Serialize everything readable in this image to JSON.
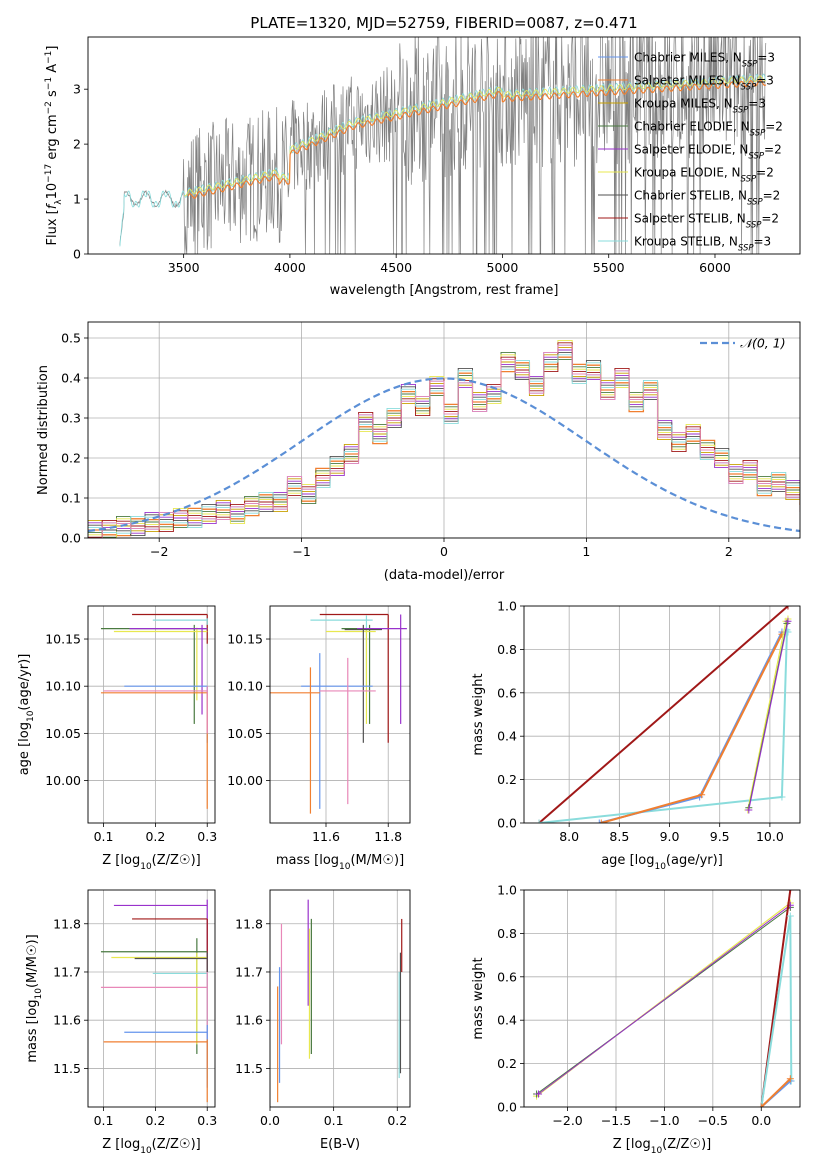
{
  "figure_title": "PLATE=1320, MJD=52759, FIBERID=0087, z=0.471",
  "colors": {
    "chabrier_miles": "#6495ED",
    "salpeter_miles": "#F07F30",
    "kroupa_miles": "#C8A000",
    "chabrier_elodie": "#4A7A40",
    "salpeter_elodie": "#9932CC",
    "kroupa_elodie": "#E8E850",
    "chabrier_stelib": "#505050",
    "salpeter_stelib": "#A01818",
    "kroupa_stelib": "#8ADCDC",
    "pink": "#E888B8",
    "data_gray": "#808080",
    "normal_curve": "#5B8FD6"
  },
  "chart_data": [
    {
      "id": "spectrum",
      "type": "line",
      "title": "PLATE=1320, MJD=52759, FIBERID=0087, z=0.471",
      "xlabel": "wavelength [Angstrom, rest frame]",
      "ylabel_parts": [
        "Flux [",
        "f",
        "λ",
        "10",
        "−17",
        " erg cm",
        "−2",
        " s",
        "−1",
        " A",
        "−1",
        "]"
      ],
      "xlim": [
        3050,
        6400
      ],
      "ylim": [
        0,
        3.95
      ],
      "xticks": [
        "3500",
        "4000",
        "4500",
        "5000",
        "5500",
        "6000"
      ],
      "xtick_values": [
        3500,
        4000,
        4500,
        5000,
        5500,
        6000
      ],
      "yticks": [
        "0",
        "1",
        "2",
        "3"
      ],
      "ytick_values": [
        0,
        1,
        2,
        3
      ],
      "grid": false,
      "legend_position": "top-right",
      "legend": [
        {
          "label": "Chabrier MILES, N",
          "sub": "SSP",
          "suffix": "=3",
          "color_key": "chabrier_miles"
        },
        {
          "label": "Salpeter MILES, N",
          "sub": "SSP",
          "suffix": "=3",
          "color_key": "salpeter_miles"
        },
        {
          "label": "Kroupa MILES, N",
          "sub": "SSP",
          "suffix": "=3",
          "color_key": "kroupa_miles"
        },
        {
          "label": "Chabrier ELODIE, N",
          "sub": "SSP",
          "suffix": "=2",
          "color_key": "chabrier_elodie"
        },
        {
          "label": "Salpeter ELODIE, N",
          "sub": "SSP",
          "suffix": "=2",
          "color_key": "salpeter_elodie"
        },
        {
          "label": "Kroupa ELODIE, N",
          "sub": "SSP",
          "suffix": "=2",
          "color_key": "kroupa_elodie"
        },
        {
          "label": "Chabrier STELIB, N",
          "sub": "SSP",
          "suffix": "=2",
          "color_key": "chabrier_stelib"
        },
        {
          "label": "Salpeter STELIB, N",
          "sub": "SSP",
          "suffix": "=2",
          "color_key": "salpeter_stelib"
        },
        {
          "label": "Kroupa STELIB, N",
          "sub": "SSP",
          "suffix": "=3",
          "color_key": "kroupa_stelib"
        }
      ],
      "spectrum_note": "",
      "data_range": [
        3200,
        6240
      ]
    },
    {
      "id": "residuals",
      "type": "histogram",
      "xlabel": "(data-model)/error",
      "ylabel": "Normed distribution",
      "xlim": [
        -2.5,
        2.5
      ],
      "ylim": [
        0,
        0.54
      ],
      "xticks": [
        "−2",
        "−1",
        "0",
        "1",
        "2"
      ],
      "xtick_values": [
        -2,
        -1,
        0,
        1,
        2
      ],
      "yticks": [
        "0.0",
        "0.1",
        "0.2",
        "0.3",
        "0.4",
        "0.5"
      ],
      "ytick_values": [
        0,
        0.1,
        0.2,
        0.3,
        0.4,
        0.5
      ],
      "grid": true,
      "legend_position": "top-right",
      "legend_label": "𝒩(0, 1)",
      "bin_start": -2.5,
      "bin_width": 0.1,
      "hist_values": [
        0.02,
        0.02,
        0.03,
        0.03,
        0.04,
        0.04,
        0.05,
        0.05,
        0.06,
        0.07,
        0.06,
        0.08,
        0.09,
        0.09,
        0.13,
        0.11,
        0.15,
        0.18,
        0.21,
        0.29,
        0.26,
        0.3,
        0.36,
        0.33,
        0.38,
        0.31,
        0.4,
        0.34,
        0.36,
        0.44,
        0.42,
        0.38,
        0.44,
        0.47,
        0.41,
        0.42,
        0.37,
        0.4,
        0.34,
        0.37,
        0.27,
        0.24,
        0.26,
        0.22,
        0.2,
        0.16,
        0.17,
        0.13,
        0.14,
        0.12,
        0.09
      ]
    },
    {
      "id": "age_vs_Z",
      "type": "errorbar",
      "xlabel": "Z [log10(Z/Z☉)]",
      "ylabel": "age  [log10(age/yr)]",
      "xlim": [
        0.07,
        0.315
      ],
      "ylim": [
        9.955,
        10.185
      ],
      "xticks": [
        "0.1",
        "0.2",
        "0.3"
      ],
      "xtick_values": [
        0.1,
        0.2,
        0.3
      ],
      "yticks": [
        "10.00",
        "10.05",
        "10.10",
        "10.15"
      ],
      "ytick_values": [
        10.0,
        10.05,
        10.1,
        10.15
      ],
      "grid": true,
      "points": [
        {
          "x": 0.3,
          "y": 10.176,
          "x0": 0.155,
          "x1": 0.3,
          "y0": 10.145,
          "y1": 10.176,
          "color_key": "salpeter_stelib"
        },
        {
          "x": 0.3,
          "y": 10.17,
          "x0": 0.195,
          "x1": 0.3,
          "y0": 10.165,
          "y1": 10.172,
          "color_key": "kroupa_stelib"
        },
        {
          "x": 0.275,
          "y": 10.161,
          "x0": 0.095,
          "x1": 0.3,
          "y0": 10.06,
          "y1": 10.165,
          "color_key": "chabrier_elodie"
        },
        {
          "x": 0.28,
          "y": 10.158,
          "x0": 0.12,
          "x1": 0.3,
          "y0": 10.085,
          "y1": 10.162,
          "color_key": "kroupa_elodie"
        },
        {
          "x": 0.29,
          "y": 10.161,
          "x0": 0.15,
          "x1": 0.3,
          "y0": 10.07,
          "y1": 10.165,
          "color_key": "salpeter_elodie"
        },
        {
          "x": 0.3,
          "y": 10.1,
          "x0": 0.14,
          "x1": 0.3,
          "y0": 10.04,
          "y1": 10.1,
          "color_key": "chabrier_miles"
        },
        {
          "x": 0.3,
          "y": 10.093,
          "x0": 0.095,
          "x1": 0.3,
          "y0": 9.97,
          "y1": 10.094,
          "color_key": "salpeter_miles"
        },
        {
          "x": 0.3,
          "y": 10.095,
          "x0": 0.1,
          "x1": 0.3,
          "y0": 10.05,
          "y1": 10.1,
          "color_key": "pink"
        }
      ]
    },
    {
      "id": "age_vs_mass",
      "type": "errorbar",
      "xlabel": "mass [log10(M/M☉)]",
      "ylabel": "",
      "xlim": [
        11.42,
        11.87
      ],
      "ylim": [
        9.955,
        10.185
      ],
      "xticks": [
        "11.6",
        "11.8"
      ],
      "xtick_values": [
        11.6,
        11.8
      ],
      "yticks": [
        "10.00",
        "10.05",
        "10.10",
        "10.15"
      ],
      "ytick_values": [
        10.0,
        10.05,
        10.1,
        10.15
      ],
      "grid": true,
      "points": [
        {
          "x": 11.8,
          "y": 10.176,
          "x0": 11.58,
          "x1": 11.8,
          "y0": 10.04,
          "y1": 10.176,
          "color_key": "salpeter_stelib"
        },
        {
          "x": 11.73,
          "y": 10.17,
          "x0": 11.55,
          "x1": 11.75,
          "y0": 10.1,
          "y1": 10.175,
          "color_key": "kroupa_stelib"
        },
        {
          "x": 11.74,
          "y": 10.161,
          "x0": 11.65,
          "x1": 11.78,
          "y0": 10.06,
          "y1": 10.165,
          "color_key": "chabrier_elodie"
        },
        {
          "x": 11.73,
          "y": 10.158,
          "x0": 11.6,
          "x1": 11.76,
          "y0": 10.06,
          "y1": 10.16,
          "color_key": "kroupa_elodie"
        },
        {
          "x": 11.84,
          "y": 10.161,
          "x0": 11.7,
          "x1": 11.86,
          "y0": 10.06,
          "y1": 10.176,
          "color_key": "salpeter_elodie"
        },
        {
          "x": 11.72,
          "y": 10.16,
          "x0": 11.66,
          "x1": 11.78,
          "y0": 10.04,
          "y1": 10.165,
          "color_key": "chabrier_stelib"
        },
        {
          "x": 11.58,
          "y": 10.1,
          "x0": 11.52,
          "x1": 11.75,
          "y0": 9.97,
          "y1": 10.135,
          "color_key": "chabrier_miles"
        },
        {
          "x": 11.55,
          "y": 10.093,
          "x0": 11.42,
          "x1": 11.58,
          "y0": 9.965,
          "y1": 10.12,
          "color_key": "salpeter_miles"
        },
        {
          "x": 11.67,
          "y": 10.095,
          "x0": 11.58,
          "x1": 11.76,
          "y0": 9.975,
          "y1": 10.13,
          "color_key": "pink"
        }
      ]
    },
    {
      "id": "weight_vs_age",
      "type": "line",
      "xlabel": "age  [log10(age/yr)]",
      "ylabel": "mass weight",
      "xlim": [
        7.55,
        10.3
      ],
      "ylim": [
        0,
        1.0
      ],
      "xticks": [
        "8.0",
        "8.5",
        "9.0",
        "9.5",
        "10.0"
      ],
      "xtick_values": [
        8.0,
        8.5,
        9.0,
        9.5,
        10.0
      ],
      "yticks": [
        "0.0",
        "0.2",
        "0.4",
        "0.6",
        "0.8",
        "1.0"
      ],
      "ytick_values": [
        0,
        0.2,
        0.4,
        0.6,
        0.8,
        1.0
      ],
      "grid": true,
      "series": [
        {
          "color_key": "salpeter_stelib",
          "width": 2,
          "x": [
            7.7,
            10.18
          ],
          "y": [
            0.0,
            1.0
          ]
        },
        {
          "color_key": "kroupa_stelib",
          "width": 2,
          "x": [
            7.7,
            10.12,
            10.17,
            10.18
          ],
          "y": [
            0.0,
            0.12,
            0.89,
            0.88
          ]
        },
        {
          "color_key": "chabrier_miles",
          "width": 2,
          "x": [
            8.3,
            9.3,
            10.12
          ],
          "y": [
            0.0,
            0.12,
            0.88
          ]
        },
        {
          "color_key": "salpeter_miles",
          "width": 2,
          "x": [
            8.32,
            9.32,
            10.12
          ],
          "y": [
            0.0,
            0.13,
            0.87
          ]
        },
        {
          "color_key": "kroupa_elodie",
          "width": 1.2,
          "x": [
            9.78,
            10.16,
            10.18
          ],
          "y": [
            0.06,
            0.93,
            0.94
          ]
        },
        {
          "color_key": "chabrier_elodie",
          "width": 1,
          "x": [
            9.79,
            10.17
          ],
          "y": [
            0.07,
            0.92
          ]
        },
        {
          "color_key": "salpeter_elodie",
          "width": 1,
          "x": [
            9.79,
            10.18
          ],
          "y": [
            0.06,
            0.93
          ]
        }
      ]
    },
    {
      "id": "mass_vs_Z",
      "type": "errorbar",
      "xlabel": "Z [log10(Z/Z☉)]",
      "ylabel": "mass [log10(M/M☉)]",
      "xlim": [
        0.07,
        0.315
      ],
      "ylim": [
        11.42,
        11.87
      ],
      "xticks": [
        "0.1",
        "0.2",
        "0.3"
      ],
      "xtick_values": [
        0.1,
        0.2,
        0.3
      ],
      "yticks": [
        "11.5",
        "11.6",
        "11.7",
        "11.8"
      ],
      "ytick_values": [
        11.5,
        11.6,
        11.7,
        11.8
      ],
      "grid": true,
      "points": [
        {
          "x": 0.3,
          "y": 11.838,
          "x0": 0.12,
          "x1": 0.3,
          "y0": 11.7,
          "y1": 11.85,
          "color_key": "salpeter_elodie"
        },
        {
          "x": 0.3,
          "y": 11.81,
          "x0": 0.155,
          "x1": 0.3,
          "y0": 11.7,
          "y1": 11.81,
          "color_key": "salpeter_stelib"
        },
        {
          "x": 0.28,
          "y": 11.742,
          "x0": 0.095,
          "x1": 0.3,
          "y0": 11.53,
          "y1": 11.77,
          "color_key": "chabrier_elodie"
        },
        {
          "x": 0.28,
          "y": 11.73,
          "x0": 0.115,
          "x1": 0.3,
          "y0": 11.55,
          "y1": 11.74,
          "color_key": "kroupa_elodie"
        },
        {
          "x": 0.3,
          "y": 11.728,
          "x0": 0.16,
          "x1": 0.3,
          "y0": 11.52,
          "y1": 11.74,
          "color_key": "chabrier_stelib"
        },
        {
          "x": 0.3,
          "y": 11.697,
          "x0": 0.195,
          "x1": 0.3,
          "y0": 11.48,
          "y1": 11.7,
          "color_key": "kroupa_stelib"
        },
        {
          "x": 0.3,
          "y": 11.668,
          "x0": 0.095,
          "x1": 0.3,
          "y0": 11.5,
          "y1": 11.7,
          "color_key": "pink"
        },
        {
          "x": 0.3,
          "y": 11.575,
          "x0": 0.14,
          "x1": 0.3,
          "y0": 11.46,
          "y1": 11.59,
          "color_key": "chabrier_miles"
        },
        {
          "x": 0.3,
          "y": 11.555,
          "x0": 0.1,
          "x1": 0.3,
          "y0": 11.43,
          "y1": 11.56,
          "color_key": "salpeter_miles"
        }
      ]
    },
    {
      "id": "mass_vs_ebv",
      "type": "errorbar",
      "xlabel": "E(B-V)",
      "ylabel": "",
      "xlim": [
        0.0,
        0.22
      ],
      "ylim": [
        11.42,
        11.87
      ],
      "xticks": [
        "0.0",
        "0.1",
        "0.2"
      ],
      "xtick_values": [
        0.0,
        0.1,
        0.2
      ],
      "yticks": [
        "11.5",
        "11.6",
        "11.7",
        "11.8"
      ],
      "ytick_values": [
        11.5,
        11.6,
        11.7,
        11.8
      ],
      "grid": true,
      "points": [
        {
          "x": 0.012,
          "y": 11.56,
          "x0": 0.012,
          "x1": 0.012,
          "y0": 11.43,
          "y1": 11.67,
          "color_key": "salpeter_miles"
        },
        {
          "x": 0.015,
          "y": 11.6,
          "x0": 0.015,
          "x1": 0.015,
          "y0": 11.47,
          "y1": 11.71,
          "color_key": "chabrier_miles"
        },
        {
          "x": 0.018,
          "y": 11.67,
          "x0": 0.018,
          "x1": 0.018,
          "y0": 11.55,
          "y1": 11.8,
          "color_key": "pink"
        },
        {
          "x": 0.06,
          "y": 11.74,
          "x0": 0.06,
          "x1": 0.06,
          "y0": 11.63,
          "y1": 11.85,
          "color_key": "salpeter_elodie"
        },
        {
          "x": 0.062,
          "y": 11.73,
          "x0": 0.062,
          "x1": 0.062,
          "y0": 11.52,
          "y1": 11.79,
          "color_key": "kroupa_elodie"
        },
        {
          "x": 0.065,
          "y": 11.74,
          "x0": 0.065,
          "x1": 0.065,
          "y0": 11.53,
          "y1": 11.81,
          "color_key": "chabrier_elodie"
        },
        {
          "x": 0.203,
          "y": 11.7,
          "x0": 0.203,
          "x1": 0.203,
          "y0": 11.48,
          "y1": 11.7,
          "color_key": "kroupa_stelib"
        },
        {
          "x": 0.205,
          "y": 11.73,
          "x0": 0.205,
          "x1": 0.205,
          "y0": 11.49,
          "y1": 11.74,
          "color_key": "chabrier_stelib"
        },
        {
          "x": 0.207,
          "y": 11.81,
          "x0": 0.207,
          "x1": 0.207,
          "y0": 11.7,
          "y1": 11.81,
          "color_key": "salpeter_stelib"
        }
      ]
    },
    {
      "id": "weight_vs_Z",
      "type": "line",
      "xlabel": "Z [log10(Z/Z☉)]",
      "ylabel": "mass weight",
      "xlim": [
        -2.45,
        0.4
      ],
      "ylim": [
        0,
        1.0
      ],
      "xticks": [
        "−2.0",
        "−1.5",
        "−1.0",
        "−0.5",
        "0.0"
      ],
      "xtick_values": [
        -2.0,
        -1.5,
        -1.0,
        -0.5,
        0.0
      ],
      "yticks": [
        "0.0",
        "0.2",
        "0.4",
        "0.6",
        "0.8",
        "1.0"
      ],
      "ytick_values": [
        0,
        0.2,
        0.4,
        0.6,
        0.8,
        1.0
      ],
      "grid": true,
      "series": [
        {
          "color_key": "kroupa_elodie",
          "width": 1.2,
          "x": [
            -2.32,
            0.3
          ],
          "y": [
            0.05,
            0.94
          ]
        },
        {
          "color_key": "chabrier_elodie",
          "width": 1,
          "x": [
            -2.32,
            0.3
          ],
          "y": [
            0.06,
            0.92
          ]
        },
        {
          "color_key": "salpeter_elodie",
          "width": 1,
          "x": [
            -2.3,
            0.3
          ],
          "y": [
            0.06,
            0.93
          ]
        },
        {
          "color_key": "salpeter_stelib",
          "width": 2,
          "x": [
            0.0,
            0.3
          ],
          "y": [
            0.0,
            1.0
          ]
        },
        {
          "color_key": "kroupa_stelib",
          "width": 2,
          "x": [
            0.0,
            0.3,
            0.31
          ],
          "y": [
            0.0,
            0.88,
            0.12
          ]
        },
        {
          "color_key": "chabrier_miles",
          "width": 2,
          "x": [
            0.0,
            0.3
          ],
          "y": [
            0.0,
            0.12
          ]
        },
        {
          "color_key": "salpeter_miles",
          "width": 2,
          "x": [
            0.0,
            0.3
          ],
          "y": [
            0.0,
            0.13
          ]
        }
      ]
    }
  ]
}
